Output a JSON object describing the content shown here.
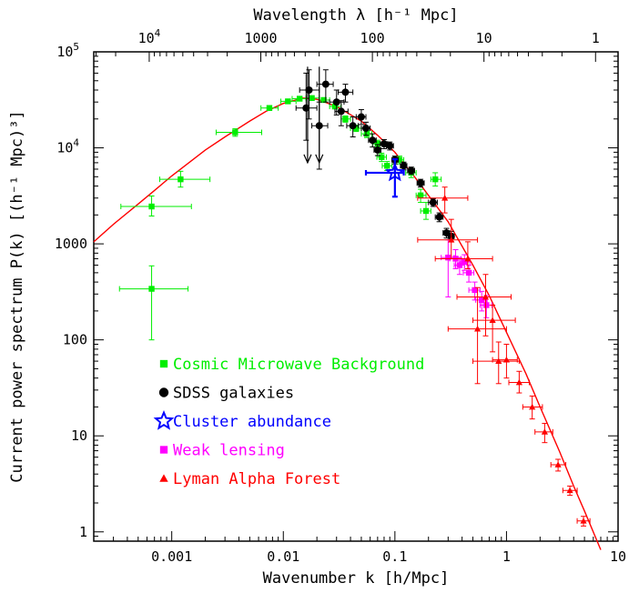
{
  "chart_data": {
    "type": "scatter",
    "xlabel": "Wavenumber k [h/Mpc]",
    "ylabel": "Current power spectrum P(k) [(h⁻¹ Mpc)³]",
    "top_xlabel": "Wavelength λ [h⁻¹ Mpc]",
    "x_scale": "log",
    "y_scale": "log",
    "xlim": [
      0.0002,
      10
    ],
    "ylim": [
      0.8,
      100000
    ],
    "x_tick_labels": [
      {
        "value": 0.001,
        "label": "0.001"
      },
      {
        "value": 0.01,
        "label": "0.01"
      },
      {
        "value": 0.1,
        "label": "0.1"
      },
      {
        "value": 1,
        "label": "1"
      },
      {
        "value": 10,
        "label": "10"
      }
    ],
    "y_tick_labels": [
      {
        "value": 1,
        "label": "1"
      },
      {
        "value": 10,
        "label": "10"
      },
      {
        "value": 100,
        "label": "100"
      },
      {
        "value": 1000,
        "label": "1000"
      },
      {
        "value": 10000,
        "label": "10",
        "exp": "4"
      },
      {
        "value": 100000,
        "label": "10",
        "exp": "5"
      }
    ],
    "top_tick_labels": [
      {
        "wavelength": 10000,
        "label": "10",
        "exp": "4"
      },
      {
        "wavelength": 1000,
        "label": "1000"
      },
      {
        "wavelength": 100,
        "label": "100"
      },
      {
        "wavelength": 10,
        "label": "10"
      },
      {
        "wavelength": 1,
        "label": "1"
      }
    ],
    "model_curve": {
      "color": "#ff0000",
      "points": [
        [
          0.0002,
          1050
        ],
        [
          0.0003,
          1600
        ],
        [
          0.0005,
          2600
        ],
        [
          0.0007,
          3600
        ],
        [
          0.001,
          5100
        ],
        [
          0.002,
          9500
        ],
        [
          0.003,
          13000
        ],
        [
          0.005,
          19000
        ],
        [
          0.007,
          24000
        ],
        [
          0.01,
          29000
        ],
        [
          0.015,
          33000
        ],
        [
          0.02,
          32000
        ],
        [
          0.03,
          27000
        ],
        [
          0.05,
          19000
        ],
        [
          0.07,
          13500
        ],
        [
          0.1,
          9000
        ],
        [
          0.15,
          5000
        ],
        [
          0.2,
          3200
        ],
        [
          0.3,
          1700
        ],
        [
          0.5,
          600
        ],
        [
          0.7,
          290
        ],
        [
          1,
          120
        ],
        [
          1.5,
          44
        ],
        [
          2,
          20
        ],
        [
          3,
          6.8
        ],
        [
          4,
          3.0
        ],
        [
          5,
          1.65
        ],
        [
          7,
          0.65
        ]
      ]
    },
    "series": [
      {
        "name": "Cosmic Microwave Background",
        "color": "#00ee00",
        "marker": "square",
        "points": [
          {
            "x": 0.00066,
            "y": 340,
            "xlo": 0.00034,
            "xhi": 0.0014,
            "ylo": 100,
            "yhi": 590
          },
          {
            "x": 0.00066,
            "y": 2450,
            "xlo": 0.00035,
            "xhi": 0.0015,
            "ylo": 1950,
            "yhi": 3150
          },
          {
            "x": 0.0012,
            "y": 4700,
            "xlo": 0.00078,
            "xhi": 0.0022,
            "ylo": 3900,
            "yhi": 5700
          },
          {
            "x": 0.0037,
            "y": 14500,
            "xlo": 0.0025,
            "xhi": 0.0064,
            "ylo": 13200,
            "yhi": 15800
          },
          {
            "x": 0.0075,
            "y": 26000,
            "xlo": 0.0063,
            "xhi": 0.009,
            "ylo": 24500,
            "yhi": 27500
          },
          {
            "x": 0.011,
            "y": 30500,
            "xlo": 0.0095,
            "xhi": 0.013,
            "ylo": 29000,
            "yhi": 32000
          },
          {
            "x": 0.014,
            "y": 32500,
            "xlo": 0.012,
            "xhi": 0.016,
            "ylo": 31000,
            "yhi": 34000
          },
          {
            "x": 0.018,
            "y": 33000,
            "xlo": 0.016,
            "xhi": 0.021,
            "ylo": 31500,
            "yhi": 34500
          },
          {
            "x": 0.023,
            "y": 31500,
            "xlo": 0.021,
            "xhi": 0.026,
            "ylo": 30000,
            "yhi": 33000
          },
          {
            "x": 0.029,
            "y": 27000,
            "xlo": 0.026,
            "xhi": 0.033,
            "ylo": 25500,
            "yhi": 28500
          },
          {
            "x": 0.036,
            "y": 20000,
            "xlo": 0.033,
            "xhi": 0.04,
            "ylo": 18500,
            "yhi": 21500
          },
          {
            "x": 0.045,
            "y": 16000,
            "xlo": 0.04,
            "xhi": 0.05,
            "ylo": 14800,
            "yhi": 17200
          },
          {
            "x": 0.056,
            "y": 14000,
            "xlo": 0.05,
            "xhi": 0.062,
            "ylo": 12800,
            "yhi": 15200
          },
          {
            "x": 0.07,
            "y": 11000,
            "xlo": 0.063,
            "xhi": 0.078,
            "ylo": 10000,
            "yhi": 12000
          },
          {
            "x": 0.076,
            "y": 8000,
            "xlo": 0.069,
            "xhi": 0.084,
            "ylo": 7200,
            "yhi": 8800
          },
          {
            "x": 0.085,
            "y": 6500,
            "xlo": 0.077,
            "xhi": 0.094,
            "ylo": 5800,
            "yhi": 7200
          },
          {
            "x": 0.11,
            "y": 7500,
            "xlo": 0.1,
            "xhi": 0.12,
            "ylo": 6800,
            "yhi": 8200
          },
          {
            "x": 0.14,
            "y": 5500,
            "xlo": 0.125,
            "xhi": 0.155,
            "ylo": 4900,
            "yhi": 6100
          },
          {
            "x": 0.17,
            "y": 3200,
            "xlo": 0.155,
            "xhi": 0.19,
            "ylo": 2700,
            "yhi": 3700
          },
          {
            "x": 0.19,
            "y": 2200,
            "xlo": 0.17,
            "xhi": 0.21,
            "ylo": 1800,
            "yhi": 2700
          },
          {
            "x": 0.23,
            "y": 4700,
            "xlo": 0.21,
            "xhi": 0.26,
            "ylo": 4000,
            "yhi": 5500
          }
        ]
      },
      {
        "name": "SDSS galaxies",
        "color": "#000000",
        "marker": "circle",
        "points": [
          {
            "x": 0.016,
            "y": 26000,
            "xlo": 0.013,
            "xhi": 0.02,
            "ylo": 12000,
            "yhi": 60000
          },
          {
            "x": 0.017,
            "y": 40000,
            "xlo": 0.014,
            "xhi": 0.021,
            "ylo": 20000,
            "yhi": 65000
          },
          {
            "x": 0.021,
            "y": 17000,
            "xlo": 0.018,
            "xhi": 0.025,
            "ylo": 6000,
            "yhi": 30000
          },
          {
            "x": 0.024,
            "y": 46000,
            "xlo": 0.02,
            "xhi": 0.028,
            "ylo": 30000,
            "yhi": 65000
          },
          {
            "x": 0.03,
            "y": 30000,
            "xlo": 0.026,
            "xhi": 0.035,
            "ylo": 22000,
            "yhi": 40000
          },
          {
            "x": 0.033,
            "y": 24000,
            "xlo": 0.029,
            "xhi": 0.038,
            "ylo": 17000,
            "yhi": 31000
          },
          {
            "x": 0.036,
            "y": 38000,
            "xlo": 0.031,
            "xhi": 0.042,
            "ylo": 30000,
            "yhi": 46000
          },
          {
            "x": 0.042,
            "y": 17000,
            "xlo": 0.037,
            "xhi": 0.047,
            "ylo": 13000,
            "yhi": 21000
          },
          {
            "x": 0.05,
            "y": 21000,
            "xlo": 0.045,
            "xhi": 0.055,
            "ylo": 17500,
            "yhi": 25000
          },
          {
            "x": 0.055,
            "y": 16000,
            "xlo": 0.05,
            "xhi": 0.06,
            "ylo": 13500,
            "yhi": 18500
          },
          {
            "x": 0.063,
            "y": 12000,
            "xlo": 0.058,
            "xhi": 0.068,
            "ylo": 10200,
            "yhi": 14000
          },
          {
            "x": 0.07,
            "y": 9500,
            "xlo": 0.065,
            "xhi": 0.075,
            "ylo": 8300,
            "yhi": 10800
          },
          {
            "x": 0.08,
            "y": 11000,
            "xlo": 0.074,
            "xhi": 0.086,
            "ylo": 9800,
            "yhi": 12200
          },
          {
            "x": 0.09,
            "y": 10500,
            "xlo": 0.084,
            "xhi": 0.097,
            "ylo": 9500,
            "yhi": 11500
          },
          {
            "x": 0.1,
            "y": 7500,
            "xlo": 0.094,
            "xhi": 0.107,
            "ylo": 6800,
            "yhi": 8200
          },
          {
            "x": 0.12,
            "y": 6500,
            "xlo": 0.112,
            "xhi": 0.128,
            "ylo": 5900,
            "yhi": 7100
          },
          {
            "x": 0.14,
            "y": 5800,
            "xlo": 0.13,
            "xhi": 0.15,
            "ylo": 5300,
            "yhi": 6300
          },
          {
            "x": 0.17,
            "y": 4300,
            "xlo": 0.158,
            "xhi": 0.183,
            "ylo": 3900,
            "yhi": 4700
          },
          {
            "x": 0.22,
            "y": 2700,
            "xlo": 0.2,
            "xhi": 0.24,
            "ylo": 2450,
            "yhi": 2950
          },
          {
            "x": 0.25,
            "y": 1900,
            "xlo": 0.23,
            "xhi": 0.27,
            "ylo": 1700,
            "yhi": 2100
          },
          {
            "x": 0.29,
            "y": 1300,
            "xlo": 0.27,
            "xhi": 0.31,
            "ylo": 1150,
            "yhi": 1450
          },
          {
            "x": 0.32,
            "y": 1200,
            "xlo": 0.3,
            "xhi": 0.34,
            "ylo": 1050,
            "yhi": 1350
          }
        ],
        "upper_limits": [
          {
            "x": 0.0165,
            "y_top": 70000,
            "y_bottom": 7000
          },
          {
            "x": 0.021,
            "y_top": 70000,
            "y_bottom": 7000
          }
        ]
      },
      {
        "name": "Cluster abundance",
        "color": "#0000ff",
        "marker": "star",
        "points": [
          {
            "x": 0.1,
            "y": 5500,
            "xlo": 0.055,
            "xhi": 0.12,
            "ylo": 3100,
            "yhi": 7600
          }
        ]
      },
      {
        "name": "Weak lensing",
        "color": "#ff00ff",
        "marker": "square",
        "points": [
          {
            "x": 0.3,
            "y": 720,
            "xlo": 0.26,
            "xhi": 0.34,
            "ylo": 280,
            "yhi": 1100
          },
          {
            "x": 0.35,
            "y": 700,
            "xlo": 0.31,
            "xhi": 0.39,
            "ylo": 550,
            "yhi": 870
          },
          {
            "x": 0.38,
            "y": 600,
            "xlo": 0.34,
            "xhi": 0.42,
            "ylo": 480,
            "yhi": 720
          },
          {
            "x": 0.42,
            "y": 650,
            "xlo": 0.38,
            "xhi": 0.47,
            "ylo": 530,
            "yhi": 770
          },
          {
            "x": 0.46,
            "y": 500,
            "xlo": 0.41,
            "xhi": 0.51,
            "ylo": 400,
            "yhi": 600
          },
          {
            "x": 0.52,
            "y": 330,
            "xlo": 0.46,
            "xhi": 0.58,
            "ylo": 260,
            "yhi": 400
          },
          {
            "x": 0.6,
            "y": 260,
            "xlo": 0.53,
            "xhi": 0.67,
            "ylo": 200,
            "yhi": 320
          },
          {
            "x": 0.66,
            "y": 230,
            "xlo": 0.58,
            "xhi": 0.74,
            "ylo": 170,
            "yhi": 290
          }
        ]
      },
      {
        "name": "Lyman Alpha Forest",
        "color": "#ff0000",
        "marker": "triangle",
        "points": [
          {
            "x": 0.28,
            "y": 3000,
            "xlo": 0.16,
            "xhi": 0.45,
            "ylo": 2100,
            "yhi": 3900
          },
          {
            "x": 0.32,
            "y": 1100,
            "xlo": 0.16,
            "xhi": 0.55,
            "ylo": 700,
            "yhi": 1800
          },
          {
            "x": 0.45,
            "y": 700,
            "xlo": 0.23,
            "xhi": 0.75,
            "ylo": 550,
            "yhi": 1050
          },
          {
            "x": 0.55,
            "y": 130,
            "xlo": 0.3,
            "xhi": 1.0,
            "ylo": 35,
            "yhi": 350
          },
          {
            "x": 0.65,
            "y": 280,
            "xlo": 0.36,
            "xhi": 1.1,
            "ylo": 110,
            "yhi": 480
          },
          {
            "x": 0.75,
            "y": 160,
            "xlo": 0.5,
            "xhi": 1.2,
            "ylo": 75,
            "yhi": 230
          },
          {
            "x": 0.85,
            "y": 60,
            "xlo": 0.5,
            "xhi": 1.3,
            "ylo": 35,
            "yhi": 95
          },
          {
            "x": 1.0,
            "y": 62,
            "xlo": 0.75,
            "xhi": 1.25,
            "ylo": 40,
            "yhi": 90
          },
          {
            "x": 1.3,
            "y": 36,
            "xlo": 1.05,
            "xhi": 1.6,
            "ylo": 28,
            "yhi": 47
          },
          {
            "x": 1.7,
            "y": 20,
            "xlo": 1.4,
            "xhi": 2.1,
            "ylo": 15,
            "yhi": 26
          },
          {
            "x": 2.2,
            "y": 11,
            "xlo": 1.8,
            "xhi": 2.6,
            "ylo": 8.5,
            "yhi": 13.5
          },
          {
            "x": 2.9,
            "y": 5.0,
            "xlo": 2.5,
            "xhi": 3.4,
            "ylo": 4.3,
            "yhi": 5.7
          },
          {
            "x": 3.7,
            "y": 2.7,
            "xlo": 3.2,
            "xhi": 4.3,
            "ylo": 2.4,
            "yhi": 3.0
          },
          {
            "x": 4.9,
            "y": 1.3,
            "xlo": 4.3,
            "xhi": 5.6,
            "ylo": 1.15,
            "yhi": 1.45
          }
        ]
      }
    ],
    "legend": {
      "placement": "bottom-left",
      "entries": [
        {
          "label": "Cosmic Microwave Background",
          "color": "#00ee00",
          "marker": "square"
        },
        {
          "label": "SDSS galaxies",
          "color": "#000000",
          "marker": "circle"
        },
        {
          "label": "Cluster abundance",
          "color": "#0000ff",
          "marker": "star"
        },
        {
          "label": "Weak lensing",
          "color": "#ff00ff",
          "marker": "square"
        },
        {
          "label": "Lyman Alpha Forest",
          "color": "#ff0000",
          "marker": "triangle"
        }
      ]
    }
  }
}
